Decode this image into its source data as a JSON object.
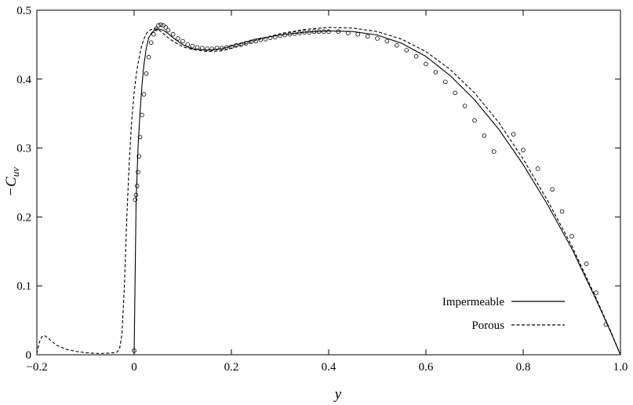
{
  "chart_data": {
    "type": "line",
    "title": "",
    "xlabel": "y",
    "ylabel": "−C",
    "ylabel_sub": "uv",
    "xlim": [
      -0.2,
      1.0
    ],
    "ylim": [
      0,
      0.5
    ],
    "xticks": [
      -0.2,
      0,
      0.2,
      0.4,
      0.6,
      0.8,
      1.0
    ],
    "xtick_labels": [
      "−0.2",
      "0",
      "0.2",
      "0.4",
      "0.6",
      "0.8",
      "1.0"
    ],
    "yticks": [
      0,
      0.1,
      0.2,
      0.3,
      0.4,
      0.5
    ],
    "ytick_labels": [
      "0",
      "0.1",
      "0.2",
      "0.3",
      "0.4",
      "0.5"
    ],
    "grid": false,
    "legend_position": "bottom-right",
    "series": [
      {
        "name": "Impermeable",
        "style": "solid",
        "x": [
          0,
          0.004,
          0.008,
          0.012,
          0.016,
          0.02,
          0.025,
          0.03,
          0.035,
          0.04,
          0.05,
          0.06,
          0.07,
          0.08,
          0.1,
          0.12,
          0.15,
          0.18,
          0.2,
          0.25,
          0.3,
          0.35,
          0.4,
          0.45,
          0.5,
          0.55,
          0.6,
          0.65,
          0.7,
          0.75,
          0.8,
          0.85,
          0.9,
          0.95,
          0.98,
          1.0
        ],
        "y": [
          0,
          0.22,
          0.3,
          0.35,
          0.39,
          0.42,
          0.445,
          0.46,
          0.466,
          0.47,
          0.473,
          0.471,
          0.466,
          0.46,
          0.45,
          0.444,
          0.442,
          0.444,
          0.448,
          0.458,
          0.464,
          0.468,
          0.47,
          0.469,
          0.464,
          0.452,
          0.433,
          0.405,
          0.37,
          0.327,
          0.276,
          0.218,
          0.154,
          0.08,
          0.033,
          0
        ]
      },
      {
        "name": "Porous",
        "style": "dashed",
        "x": [
          -0.2,
          -0.195,
          -0.19,
          -0.185,
          -0.18,
          -0.17,
          -0.16,
          -0.14,
          -0.12,
          -0.1,
          -0.08,
          -0.06,
          -0.04,
          -0.035,
          -0.03,
          -0.025,
          -0.02,
          -0.015,
          -0.01,
          -0.005,
          0,
          0.005,
          0.01,
          0.015,
          0.02,
          0.025,
          0.03,
          0.035,
          0.04,
          0.045,
          0.05,
          0.055,
          0.06,
          0.07,
          0.08,
          0.1,
          0.12,
          0.15,
          0.18,
          0.2,
          0.25,
          0.3,
          0.35,
          0.4,
          0.45,
          0.5,
          0.55,
          0.6,
          0.65,
          0.7,
          0.75,
          0.8,
          0.85,
          0.9,
          0.95,
          0.98,
          1.0
        ],
        "y": [
          0.002,
          0.018,
          0.026,
          0.028,
          0.026,
          0.02,
          0.014,
          0.008,
          0.005,
          0.003,
          0.002,
          0.002,
          0.003,
          0.004,
          0.008,
          0.03,
          0.1,
          0.2,
          0.28,
          0.34,
          0.38,
          0.41,
          0.43,
          0.447,
          0.458,
          0.466,
          0.47,
          0.472,
          0.473,
          0.473,
          0.472,
          0.469,
          0.466,
          0.46,
          0.455,
          0.447,
          0.443,
          0.44,
          0.441,
          0.445,
          0.456,
          0.466,
          0.472,
          0.475,
          0.474,
          0.469,
          0.458,
          0.44,
          0.414,
          0.38,
          0.337,
          0.284,
          0.224,
          0.158,
          0.082,
          0.034,
          0
        ]
      },
      {
        "name": "",
        "style": "markers",
        "x": [
          0,
          0.002,
          0.004,
          0.006,
          0.008,
          0.01,
          0.012,
          0.016,
          0.02,
          0.025,
          0.03,
          0.035,
          0.04,
          0.045,
          0.05,
          0.055,
          0.06,
          0.065,
          0.07,
          0.08,
          0.09,
          0.1,
          0.11,
          0.12,
          0.13,
          0.14,
          0.15,
          0.16,
          0.17,
          0.18,
          0.19,
          0.2,
          0.21,
          0.22,
          0.23,
          0.24,
          0.25,
          0.26,
          0.27,
          0.28,
          0.29,
          0.3,
          0.31,
          0.32,
          0.33,
          0.34,
          0.35,
          0.36,
          0.37,
          0.38,
          0.39,
          0.4,
          0.42,
          0.44,
          0.46,
          0.48,
          0.5,
          0.52,
          0.54,
          0.56,
          0.58,
          0.6,
          0.62,
          0.64,
          0.66,
          0.68,
          0.7,
          0.72,
          0.74,
          0.78,
          0.8,
          0.83,
          0.86,
          0.88,
          0.9,
          0.93,
          0.95,
          0.97
        ],
        "y": [
          0.006,
          0.225,
          0.232,
          0.245,
          0.265,
          0.288,
          0.316,
          0.348,
          0.378,
          0.408,
          0.432,
          0.453,
          0.465,
          0.473,
          0.478,
          0.479,
          0.478,
          0.475,
          0.471,
          0.465,
          0.459,
          0.455,
          0.45,
          0.448,
          0.446,
          0.445,
          0.444,
          0.444,
          0.445,
          0.445,
          0.446,
          0.447,
          0.449,
          0.45,
          0.452,
          0.454,
          0.455,
          0.457,
          0.458,
          0.46,
          0.461,
          0.463,
          0.464,
          0.465,
          0.466,
          0.467,
          0.468,
          0.468,
          0.469,
          0.469,
          0.469,
          0.469,
          0.469,
          0.467,
          0.465,
          0.462,
          0.459,
          0.455,
          0.449,
          0.442,
          0.433,
          0.422,
          0.41,
          0.396,
          0.38,
          0.361,
          0.34,
          0.318,
          0.295,
          0.32,
          0.297,
          0.27,
          0.24,
          0.208,
          0.172,
          0.132,
          0.09,
          0.044
        ]
      }
    ]
  }
}
